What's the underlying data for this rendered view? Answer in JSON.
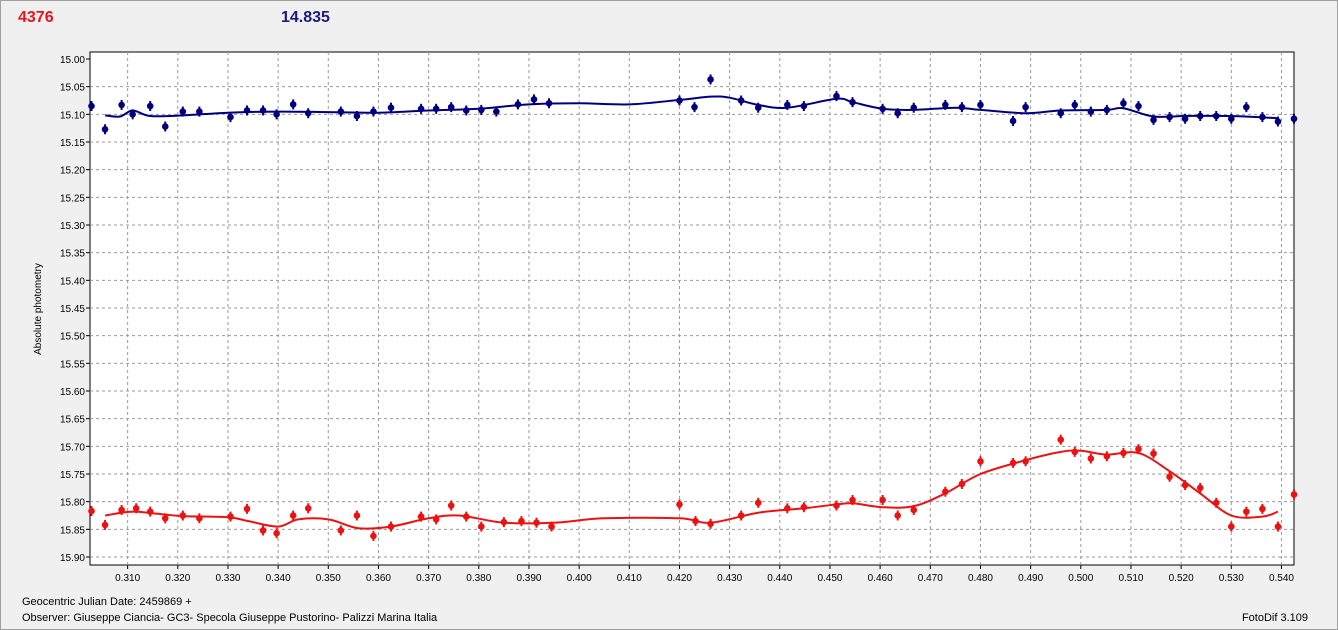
{
  "header": {
    "left_value": "4376",
    "right_value": "14.835"
  },
  "footer": {
    "date_line": "Geocentric Julian Date: 2459869 +",
    "observer_line": "Observer: Giuseppe Ciancia- GC3- Specola Giuseppe Pustorino- Palizzi Marina Italia",
    "software": "FotoDif 3.109"
  },
  "colors": {
    "blue": "#00007f",
    "red": "#ee1111",
    "grid": "#9a9a9a"
  },
  "chart_data": {
    "type": "scatter",
    "title": "",
    "xlabel": "",
    "ylabel": "Absolute photometry",
    "xlim": [
      0.3025,
      0.5425
    ],
    "ylim": [
      15.0,
      15.9
    ],
    "y_inverted": true,
    "grid": true,
    "x_ticks": [
      "0.310",
      "0.320",
      "0.330",
      "0.340",
      "0.350",
      "0.360",
      "0.370",
      "0.380",
      "0.390",
      "0.400",
      "0.410",
      "0.420",
      "0.430",
      "0.440",
      "0.450",
      "0.460",
      "0.470",
      "0.480",
      "0.490",
      "0.500",
      "0.510",
      "0.520",
      "0.530",
      "0.540"
    ],
    "y_ticks": [
      "15.00",
      "15.05",
      "15.10",
      "15.15",
      "15.20",
      "15.25",
      "15.30",
      "15.35",
      "15.40",
      "15.45",
      "15.50",
      "15.55",
      "15.60",
      "15.65",
      "15.70",
      "15.75",
      "15.80",
      "15.85",
      "15.90"
    ],
    "series": [
      {
        "color": "#00007f",
        "x": [
          0.3028,
          0.3055,
          0.3088,
          0.311,
          0.3145,
          0.3175,
          0.321,
          0.3243,
          0.3305,
          0.3338,
          0.337,
          0.3397,
          0.343,
          0.346,
          0.3525,
          0.3557,
          0.359,
          0.3625,
          0.3685,
          0.3715,
          0.3745,
          0.3775,
          0.3805,
          0.3835,
          0.3878,
          0.391,
          0.394,
          0.42,
          0.423,
          0.4262,
          0.4323,
          0.4357,
          0.4415,
          0.4448,
          0.4513,
          0.4545,
          0.4605,
          0.4635,
          0.4667,
          0.473,
          0.4763,
          0.48,
          0.4865,
          0.489,
          0.496,
          0.4988,
          0.502,
          0.5052,
          0.5085,
          0.5115,
          0.5145,
          0.5177,
          0.5208,
          0.5238,
          0.527,
          0.53,
          0.533,
          0.5362,
          0.5393,
          0.5425
        ],
        "y": [
          15.085,
          15.127,
          15.083,
          15.1,
          15.085,
          15.122,
          15.095,
          15.095,
          15.105,
          15.093,
          15.093,
          15.1,
          15.082,
          15.098,
          15.095,
          15.103,
          15.095,
          15.088,
          15.09,
          15.09,
          15.087,
          15.093,
          15.092,
          15.095,
          15.082,
          15.073,
          15.08,
          15.075,
          15.087,
          15.037,
          15.075,
          15.088,
          15.083,
          15.085,
          15.067,
          15.078,
          15.09,
          15.098,
          15.088,
          15.083,
          15.087,
          15.083,
          15.112,
          15.087,
          15.098,
          15.083,
          15.095,
          15.092,
          15.08,
          15.085,
          15.11,
          15.105,
          15.108,
          15.103,
          15.103,
          15.108,
          15.087,
          15.105,
          15.113,
          15.108
        ],
        "trend": [
          [
            0.3055,
            15.102
          ],
          [
            0.3085,
            15.104
          ],
          [
            0.311,
            15.093
          ],
          [
            0.3145,
            15.103
          ],
          [
            0.321,
            15.102
          ],
          [
            0.33,
            15.097
          ],
          [
            0.34,
            15.095
          ],
          [
            0.35,
            15.096
          ],
          [
            0.36,
            15.097
          ],
          [
            0.37,
            15.093
          ],
          [
            0.38,
            15.09
          ],
          [
            0.39,
            15.082
          ],
          [
            0.4,
            15.08
          ],
          [
            0.41,
            15.082
          ],
          [
            0.42,
            15.074
          ],
          [
            0.4262,
            15.068
          ],
          [
            0.43,
            15.07
          ],
          [
            0.4357,
            15.083
          ],
          [
            0.4415,
            15.088
          ],
          [
            0.4513,
            15.072
          ],
          [
            0.4545,
            15.078
          ],
          [
            0.4605,
            15.09
          ],
          [
            0.4667,
            15.092
          ],
          [
            0.475,
            15.088
          ],
          [
            0.48,
            15.092
          ],
          [
            0.489,
            15.098
          ],
          [
            0.496,
            15.093
          ],
          [
            0.5052,
            15.092
          ],
          [
            0.5085,
            15.089
          ],
          [
            0.5145,
            15.104
          ],
          [
            0.5208,
            15.103
          ],
          [
            0.53,
            15.103
          ],
          [
            0.5393,
            15.107
          ]
        ]
      },
      {
        "color": "#ee1111",
        "x": [
          0.3028,
          0.3055,
          0.3088,
          0.3117,
          0.3145,
          0.3175,
          0.321,
          0.3243,
          0.3305,
          0.3338,
          0.337,
          0.3397,
          0.343,
          0.346,
          0.3525,
          0.3557,
          0.359,
          0.3625,
          0.3685,
          0.3715,
          0.3745,
          0.3775,
          0.3805,
          0.385,
          0.3885,
          0.3915,
          0.3945,
          0.42,
          0.4232,
          0.4262,
          0.4323,
          0.4357,
          0.4415,
          0.4448,
          0.4513,
          0.4545,
          0.4605,
          0.4635,
          0.4667,
          0.473,
          0.4763,
          0.48,
          0.4865,
          0.489,
          0.496,
          0.4988,
          0.502,
          0.5052,
          0.5085,
          0.5115,
          0.5145,
          0.5177,
          0.5208,
          0.5238,
          0.527,
          0.53,
          0.533,
          0.5362,
          0.5393,
          0.5425
        ],
        "y": [
          15.817,
          15.842,
          15.815,
          15.812,
          15.818,
          15.83,
          15.825,
          15.83,
          15.827,
          15.813,
          15.852,
          15.857,
          15.825,
          15.812,
          15.852,
          15.825,
          15.862,
          15.845,
          15.827,
          15.832,
          15.807,
          15.827,
          15.845,
          15.837,
          15.835,
          15.838,
          15.845,
          15.805,
          15.835,
          15.84,
          15.825,
          15.802,
          15.812,
          15.81,
          15.807,
          15.797,
          15.797,
          15.825,
          15.815,
          15.782,
          15.768,
          15.727,
          15.73,
          15.727,
          15.688,
          15.71,
          15.722,
          15.718,
          15.712,
          15.705,
          15.713,
          15.755,
          15.77,
          15.775,
          15.802,
          15.845,
          15.818,
          15.813,
          15.845,
          15.787
        ],
        "trend": [
          [
            0.3055,
            15.825
          ],
          [
            0.3088,
            15.82
          ],
          [
            0.3117,
            15.818
          ],
          [
            0.316,
            15.822
          ],
          [
            0.321,
            15.826
          ],
          [
            0.33,
            15.828
          ],
          [
            0.334,
            15.835
          ],
          [
            0.34,
            15.845
          ],
          [
            0.344,
            15.832
          ],
          [
            0.35,
            15.832
          ],
          [
            0.356,
            15.848
          ],
          [
            0.3625,
            15.845
          ],
          [
            0.37,
            15.83
          ],
          [
            0.376,
            15.825
          ],
          [
            0.385,
            15.838
          ],
          [
            0.395,
            15.838
          ],
          [
            0.405,
            15.83
          ],
          [
            0.42,
            15.83
          ],
          [
            0.4262,
            15.838
          ],
          [
            0.4357,
            15.82
          ],
          [
            0.4448,
            15.812
          ],
          [
            0.4513,
            15.805
          ],
          [
            0.4545,
            15.803
          ],
          [
            0.4605,
            15.81
          ],
          [
            0.4667,
            15.808
          ],
          [
            0.473,
            15.785
          ],
          [
            0.48,
            15.75
          ],
          [
            0.489,
            15.725
          ],
          [
            0.496,
            15.71
          ],
          [
            0.5,
            15.708
          ],
          [
            0.5052,
            15.715
          ],
          [
            0.5115,
            15.712
          ],
          [
            0.5177,
            15.745
          ],
          [
            0.5238,
            15.785
          ],
          [
            0.53,
            15.825
          ],
          [
            0.5362,
            15.827
          ],
          [
            0.5393,
            15.818
          ]
        ]
      }
    ]
  }
}
